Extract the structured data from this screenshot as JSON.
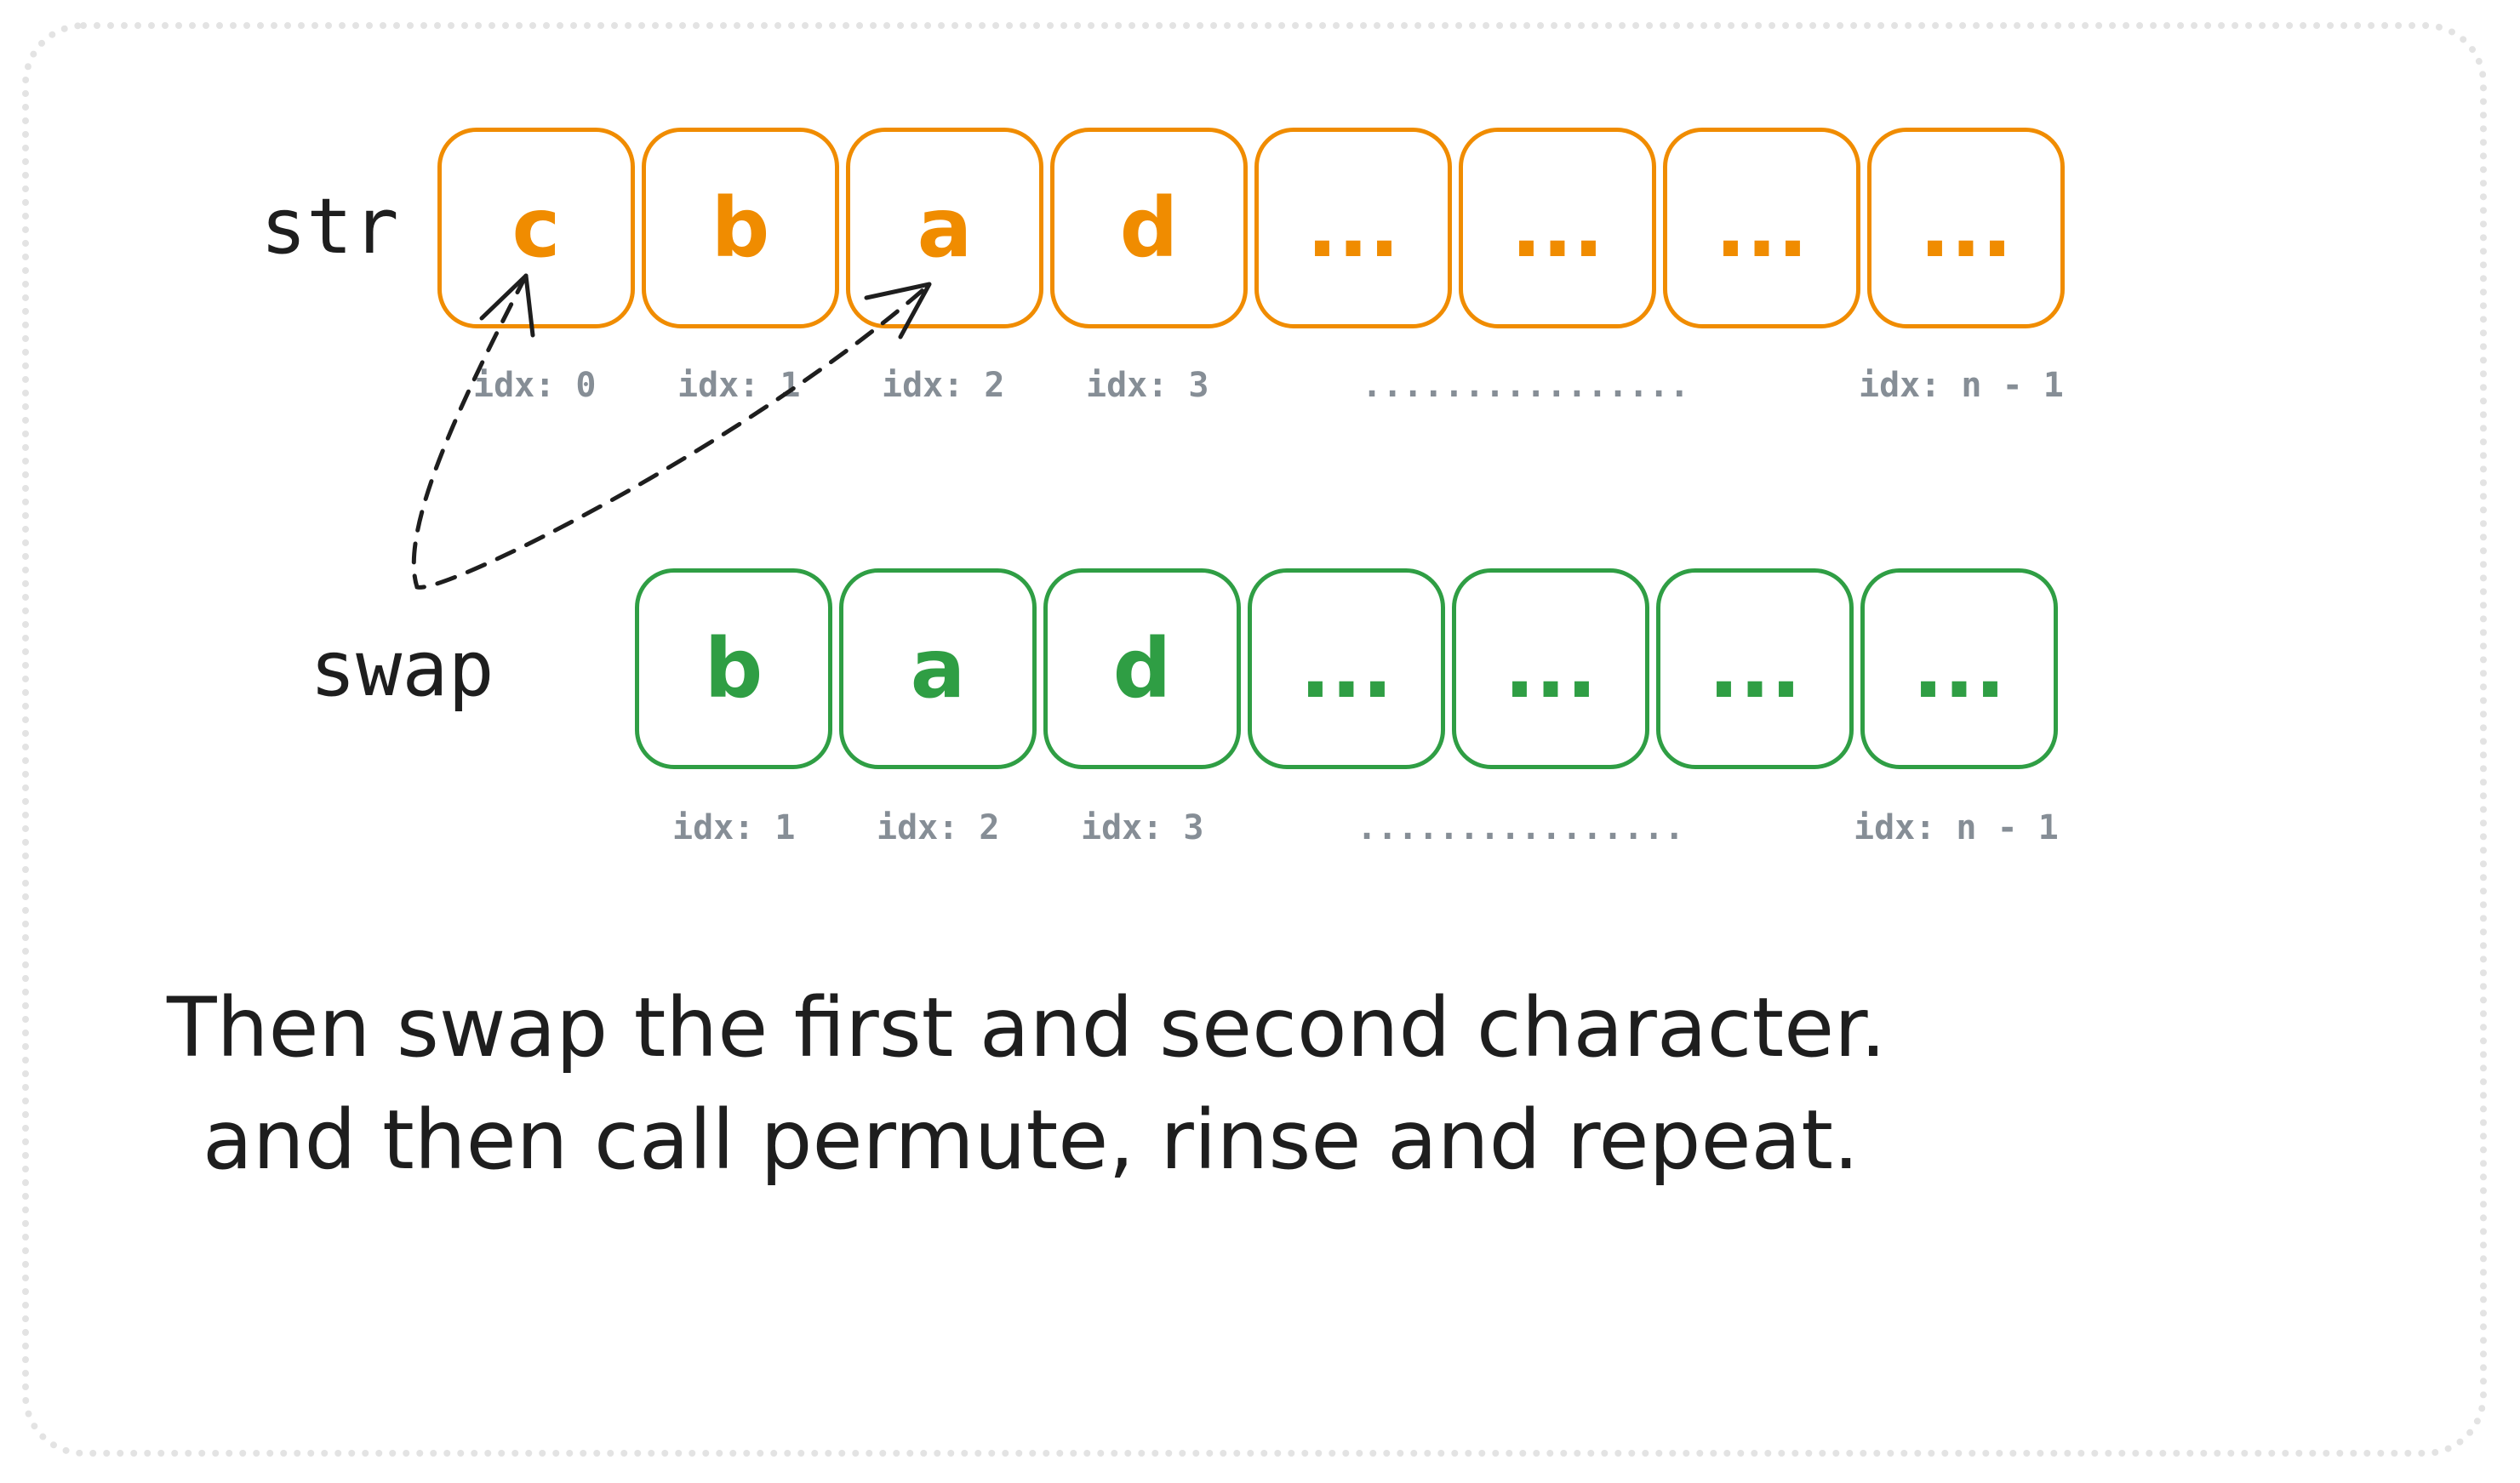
{
  "labels": {
    "top": "str",
    "bottom": "swap"
  },
  "top_row": {
    "cells": [
      "c",
      "b",
      "a",
      "d",
      "...",
      "...",
      "...",
      "..."
    ],
    "indices": [
      "idx: 0",
      "idx: 1",
      "idx: 2",
      "idx: 3"
    ],
    "ellipsis": "................",
    "last_index": "idx: n - 1"
  },
  "bottom_row": {
    "cells": [
      "b",
      "a",
      "d",
      "...",
      "...",
      "...",
      "..."
    ],
    "indices": [
      "idx: 1",
      "idx: 2",
      "idx: 3"
    ],
    "ellipsis": "................",
    "last_index": "idx: n - 1"
  },
  "caption": {
    "line1": "Then swap the first and second character.",
    "line2": "and then call permute, rinse and repeat."
  },
  "colors": {
    "top_stroke": "#f08c00",
    "bottom_stroke": "#2f9e44",
    "index_text": "#868e96",
    "text": "#1e1e1e",
    "frame": "#e3e3e3"
  }
}
